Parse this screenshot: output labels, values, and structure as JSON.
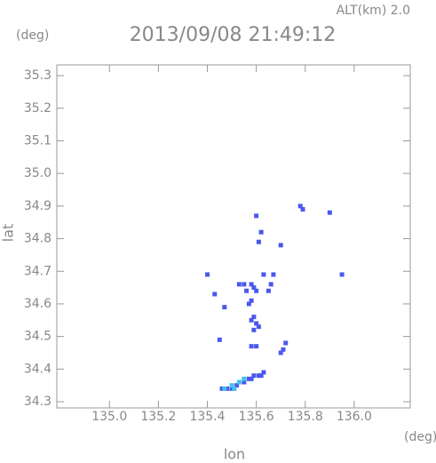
{
  "chart_data": {
    "type": "scatter",
    "title": "2013/09/08 21:49:12",
    "subtitle": "ALT(km) 2.0",
    "y_unit": "(deg)",
    "x_unit": "(deg)",
    "x_label": "lon",
    "y_label": "lat",
    "xlim": [
      134.785,
      136.229
    ],
    "ylim": [
      34.281,
      35.333
    ],
    "xticks": [
      {
        "value": 135,
        "label": "135.0"
      },
      135.2,
      135.4,
      135.6,
      135.8,
      {
        "value": 136,
        "label": "136.0"
      }
    ],
    "yticks": [
      34.3,
      34.4,
      34.5,
      34.6,
      34.7,
      34.8,
      34.9,
      {
        "value": 35,
        "label": "35.0"
      },
      35.1,
      35.2,
      35.3
    ],
    "series": [
      {
        "color": "#4a58ec",
        "x": [
          135.4,
          135.43,
          135.47,
          135.45,
          135.6,
          135.62,
          135.61,
          135.7,
          135.78,
          135.79,
          135.9,
          135.95,
          135.67,
          135.63,
          135.58,
          135.55,
          135.53,
          135.56,
          135.59,
          135.6,
          135.58,
          135.57,
          135.66,
          135.65,
          135.58,
          135.59,
          135.6,
          135.61,
          135.59,
          135.58,
          135.6,
          135.72,
          135.71,
          135.7,
          135.63,
          135.61,
          135.59,
          135.57,
          135.55,
          135.52,
          135.5,
          135.48,
          135.46,
          135.58,
          135.62
        ],
        "y": [
          34.69,
          34.63,
          34.59,
          34.49,
          34.87,
          34.82,
          34.79,
          34.78,
          34.9,
          34.89,
          34.88,
          34.69,
          34.69,
          34.69,
          34.66,
          34.66,
          34.66,
          34.64,
          34.65,
          34.64,
          34.61,
          34.6,
          34.66,
          34.64,
          34.55,
          34.56,
          34.54,
          34.53,
          34.52,
          34.47,
          34.47,
          34.48,
          34.46,
          34.45,
          34.39,
          34.38,
          34.38,
          34.37,
          34.36,
          34.35,
          34.34,
          34.34,
          34.34,
          34.37,
          34.38
        ]
      },
      {
        "color": "#46bff0",
        "x": [
          135.5,
          135.53,
          135.47,
          135.55,
          135.51
        ],
        "y": [
          34.35,
          34.36,
          34.34,
          34.37,
          34.34
        ]
      }
    ]
  }
}
